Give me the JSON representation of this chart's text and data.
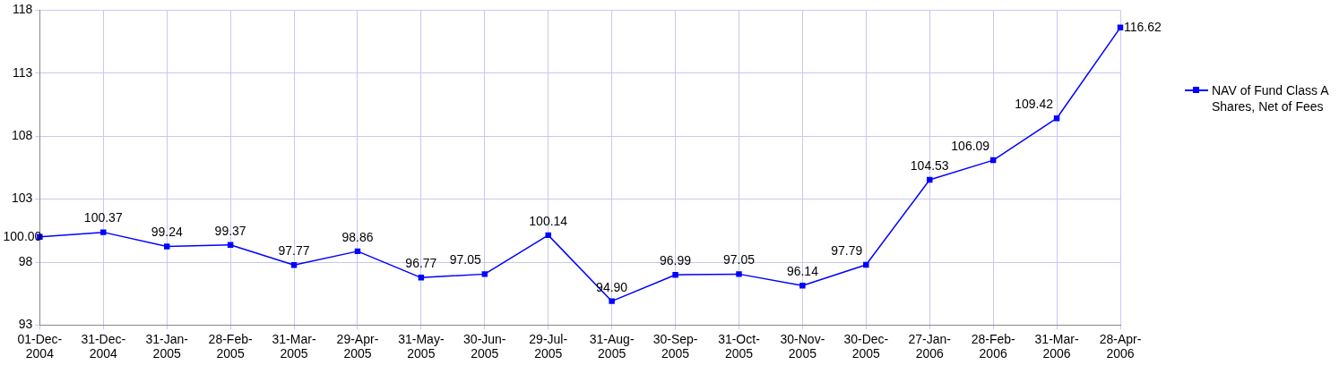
{
  "chart_data": {
    "type": "line",
    "categories": [
      "01-Dec-2004",
      "31-Dec-2004",
      "31-Jan-2005",
      "28-Feb-2005",
      "31-Mar-2005",
      "29-Apr-2005",
      "31-May-2005",
      "30-Jun-2005",
      "29-Jul-2005",
      "31-Aug-2005",
      "30-Sep-2005",
      "31-Oct-2005",
      "30-Nov-2005",
      "30-Dec-2005",
      "27-Jan-2006",
      "28-Feb-2006",
      "31-Mar-2006",
      "28-Apr-2006"
    ],
    "series": [
      {
        "name": "NAV of Fund Class A Shares, Net of Fees",
        "color": "#0000ff",
        "values": [
          100.0,
          100.37,
          99.24,
          99.37,
          97.77,
          98.86,
          96.77,
          97.05,
          100.14,
          94.9,
          96.99,
          97.05,
          96.14,
          97.79,
          104.53,
          106.09,
          109.42,
          116.62
        ]
      }
    ],
    "value_labels": [
      "100.00",
      "100.37",
      "99.24",
      "99.37",
      "97.77",
      "98.86",
      "96.77",
      "97.05",
      "100.14",
      "94.90",
      "96.99",
      "97.05",
      "96.14",
      "97.79",
      "104.53",
      "106.09",
      "109.42",
      "116.62"
    ],
    "ylim": [
      93,
      118
    ],
    "yticks": [
      93,
      98,
      103,
      108,
      113,
      118
    ],
    "grid": true,
    "legend": "right",
    "marker": "square",
    "line_style": "solid"
  }
}
